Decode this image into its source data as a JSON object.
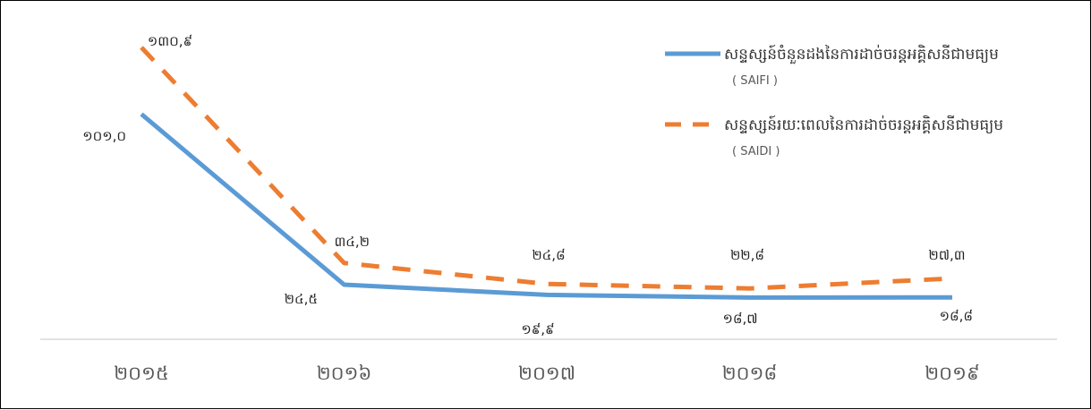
{
  "chart_data": {
    "type": "line",
    "categories": [
      "២០១៥",
      "២០១៦",
      "២០១៧",
      "២០១៨",
      "២០១៩"
    ],
    "series": [
      {
        "name": "សន្ទស្សន៍ចំនួនដងនៃការដាច់ចរន្តអគ្គិសនីជាមធ្យម",
        "abbr": "( SAIFI )",
        "style": "solid",
        "color": "#5b9bd5",
        "values": [
          101.0,
          24.5,
          19.9,
          18.7,
          18.8
        ],
        "labels": [
          "១០១,០",
          "២៤,៥",
          "១៩,៩",
          "១៨,៧",
          "១៨,៨"
        ]
      },
      {
        "name": "សន្ទស្សន៍រយៈពេលនៃការដាច់ចរន្តអគ្គិសនីជាមធ្យម",
        "abbr": "( SAIDI )",
        "style": "dashed",
        "color": "#ed7d31",
        "values": [
          130.9,
          34.2,
          24.8,
          22.8,
          27.3
        ],
        "labels": [
          "១៣០,៩",
          "៣៤,២",
          "២៤,៨",
          "២២,៨",
          "២៧,៣"
        ]
      }
    ],
    "xlabel": "",
    "ylabel": "",
    "grid": false,
    "legend": "top-right"
  }
}
